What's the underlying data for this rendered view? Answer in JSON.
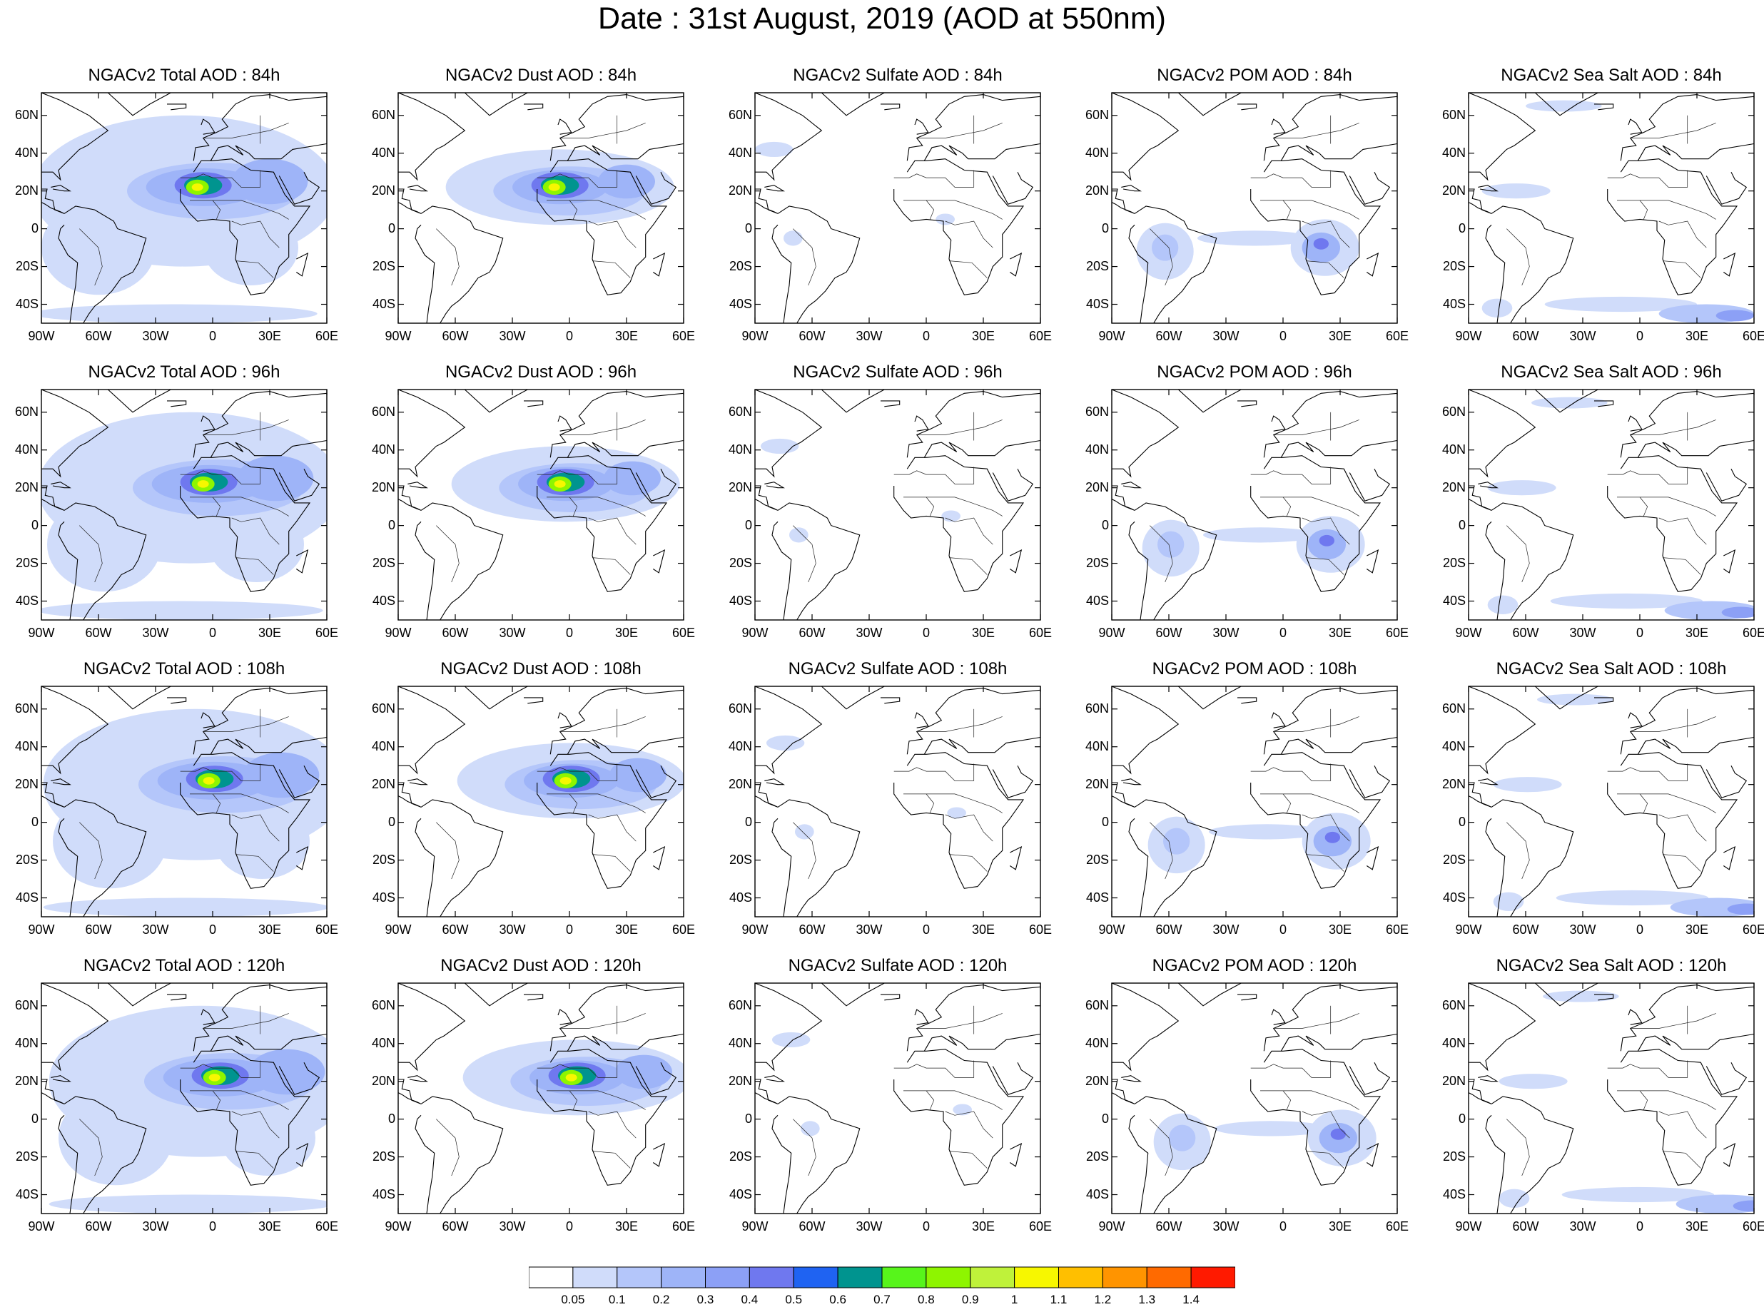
{
  "title": "Date : 31st August, 2019 (AOD at 550nm)",
  "panel_titles": [
    [
      "NGACv2 Total AOD : 84h",
      "NGACv2 Dust AOD : 84h",
      "NGACv2 Sulfate AOD : 84h",
      "NGACv2 POM AOD : 84h",
      "NGACv2 Sea Salt AOD : 84h"
    ],
    [
      "NGACv2 Total AOD : 96h",
      "NGACv2 Dust AOD : 96h",
      "NGACv2 Sulfate AOD : 96h",
      "NGACv2 POM AOD : 96h",
      "NGACv2 Sea Salt AOD : 96h"
    ],
    [
      "NGACv2 Total AOD : 108h",
      "NGACv2 Dust AOD : 108h",
      "NGACv2 Sulfate AOD : 108h",
      "NGACv2 POM AOD : 108h",
      "NGACv2 Sea Salt AOD : 108h"
    ],
    [
      "NGACv2 Total AOD : 120h",
      "NGACv2 Dust AOD : 120h",
      "NGACv2 Sulfate AOD : 120h",
      "NGACv2 POM AOD : 120h",
      "NGACv2 Sea Salt  AOD : 120h"
    ]
  ],
  "map_extent": {
    "lon_min": -90,
    "lon_max": 60,
    "lat_min": -50,
    "lat_max": 72
  },
  "lat_ticks": [
    {
      "lat": 60,
      "label": "60N"
    },
    {
      "lat": 40,
      "label": "40N"
    },
    {
      "lat": 20,
      "label": "20N"
    },
    {
      "lat": 0,
      "label": "0"
    },
    {
      "lat": -20,
      "label": "20S"
    },
    {
      "lat": -40,
      "label": "40S"
    }
  ],
  "lon_ticks": [
    {
      "lon": -90,
      "label": "90W"
    },
    {
      "lon": -60,
      "label": "60W"
    },
    {
      "lon": -30,
      "label": "30W"
    },
    {
      "lon": 0,
      "label": "0"
    },
    {
      "lon": 30,
      "label": "30E"
    },
    {
      "lon": 60,
      "label": "60E"
    }
  ],
  "colorbar": {
    "colors": [
      "#ffffff",
      "#d0dcfa",
      "#b4c6fa",
      "#9eb4f8",
      "#8ca0f6",
      "#6f78ef",
      "#1f63f2",
      "#00948f",
      "#57f51b",
      "#8ef500",
      "#bff23a",
      "#f7f700",
      "#ffbf00",
      "#ff9400",
      "#ff6a00",
      "#ff1a00"
    ],
    "labels": [
      "0.05",
      "0.1",
      "0.2",
      "0.3",
      "0.4",
      "0.5",
      "0.6",
      "0.7",
      "0.8",
      "0.9",
      "1",
      "1.1",
      "1.2",
      "1.3",
      "1.4"
    ]
  },
  "fields": {
    "total": [
      {
        "lon": -15,
        "lat": 20,
        "rx": 80,
        "ry": 40,
        "level": 1
      },
      {
        "lon": -60,
        "lat": -10,
        "rx": 30,
        "ry": 25,
        "level": 1
      },
      {
        "lon": 20,
        "lat": -10,
        "rx": 25,
        "ry": 20,
        "level": 1
      },
      {
        "lon": -20,
        "lat": -45,
        "rx": 75,
        "ry": 5,
        "level": 1
      },
      {
        "lon": 0,
        "lat": 20,
        "rx": 45,
        "ry": 15,
        "level": 2
      },
      {
        "lon": -5,
        "lat": 22,
        "rx": 30,
        "ry": 10,
        "level": 3
      },
      {
        "lon": 30,
        "lat": 25,
        "rx": 20,
        "ry": 12,
        "level": 3
      },
      {
        "lon": -5,
        "lat": 23,
        "rx": 15,
        "ry": 7,
        "level": 5
      },
      {
        "lon": -5,
        "lat": 23,
        "rx": 10,
        "ry": 5,
        "level": 7
      },
      {
        "lon": -8,
        "lat": 22,
        "rx": 6,
        "ry": 4,
        "level": 9
      },
      {
        "lon": -8,
        "lat": 22,
        "rx": 3,
        "ry": 2,
        "level": 11
      }
    ],
    "dust": [
      {
        "lon": -5,
        "lat": 22,
        "rx": 60,
        "ry": 20,
        "level": 1
      },
      {
        "lon": 0,
        "lat": 20,
        "rx": 40,
        "ry": 13,
        "level": 2
      },
      {
        "lon": -5,
        "lat": 22,
        "rx": 25,
        "ry": 9,
        "level": 3
      },
      {
        "lon": 30,
        "lat": 25,
        "rx": 15,
        "ry": 9,
        "level": 3
      },
      {
        "lon": -5,
        "lat": 23,
        "rx": 15,
        "ry": 7,
        "level": 5
      },
      {
        "lon": -5,
        "lat": 23,
        "rx": 10,
        "ry": 5,
        "level": 7
      },
      {
        "lon": -8,
        "lat": 22,
        "rx": 6,
        "ry": 4,
        "level": 9
      },
      {
        "lon": -8,
        "lat": 22,
        "rx": 3,
        "ry": 2,
        "level": 11
      }
    ],
    "sulfate": [
      {
        "lon": -70,
        "lat": -5,
        "rx": 5,
        "ry": 4,
        "level": 1
      },
      {
        "lon": -80,
        "lat": 42,
        "rx": 10,
        "ry": 4,
        "level": 1
      },
      {
        "lon": 10,
        "lat": 5,
        "rx": 5,
        "ry": 3,
        "level": 1
      }
    ],
    "pom": [
      {
        "lon": -62,
        "lat": -12,
        "rx": 15,
        "ry": 15,
        "level": 1
      },
      {
        "lon": 22,
        "lat": -10,
        "rx": 18,
        "ry": 15,
        "level": 1
      },
      {
        "lon": -15,
        "lat": -5,
        "rx": 30,
        "ry": 4,
        "level": 1
      },
      {
        "lon": 20,
        "lat": -10,
        "rx": 10,
        "ry": 8,
        "level": 3
      },
      {
        "lon": -62,
        "lat": -10,
        "rx": 7,
        "ry": 7,
        "level": 2
      },
      {
        "lon": 20,
        "lat": -8,
        "rx": 4,
        "ry": 3,
        "level": 5
      }
    ],
    "seasalt": [
      {
        "lon": -65,
        "lat": 20,
        "rx": 18,
        "ry": 4,
        "level": 1
      },
      {
        "lon": -40,
        "lat": 65,
        "rx": 20,
        "ry": 3,
        "level": 1
      },
      {
        "lon": -10,
        "lat": -40,
        "rx": 40,
        "ry": 4,
        "level": 1
      },
      {
        "lon": 35,
        "lat": -45,
        "rx": 25,
        "ry": 5,
        "level": 2
      },
      {
        "lon": 50,
        "lat": -46,
        "rx": 10,
        "ry": 3,
        "level": 4
      },
      {
        "lon": -75,
        "lat": -42,
        "rx": 8,
        "ry": 5,
        "level": 1
      }
    ]
  }
}
